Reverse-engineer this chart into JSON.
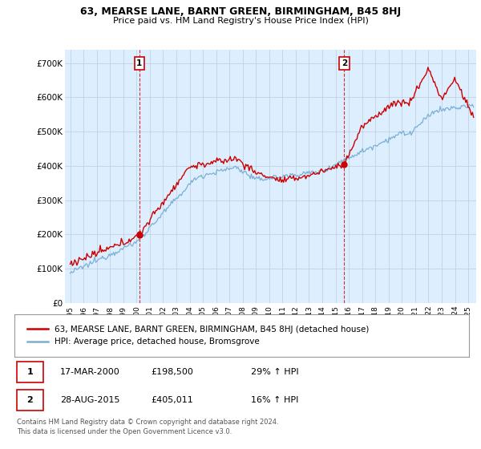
{
  "title": "63, MEARSE LANE, BARNT GREEN, BIRMINGHAM, B45 8HJ",
  "subtitle": "Price paid vs. HM Land Registry's House Price Index (HPI)",
  "ylabel_values": [
    "£0",
    "£100K",
    "£200K",
    "£300K",
    "£400K",
    "£500K",
    "£600K",
    "£700K"
  ],
  "ylim": [
    0,
    740000
  ],
  "xlim_start": 1994.6,
  "xlim_end": 2025.6,
  "red_color": "#cc0000",
  "blue_color": "#7ab0d4",
  "bg_plot_color": "#ddeeff",
  "marker1_x": 2000.21,
  "marker1_y": 198500,
  "marker2_x": 2015.65,
  "marker2_y": 405011,
  "legend_line1": "63, MEARSE LANE, BARNT GREEN, BIRMINGHAM, B45 8HJ (detached house)",
  "legend_line2": "HPI: Average price, detached house, Bromsgrove",
  "table_row1": [
    "1",
    "17-MAR-2000",
    "£198,500",
    "29% ↑ HPI"
  ],
  "table_row2": [
    "2",
    "28-AUG-2015",
    "£405,011",
    "16% ↑ HPI"
  ],
  "footnote": "Contains HM Land Registry data © Crown copyright and database right 2024.\nThis data is licensed under the Open Government Licence v3.0.",
  "background_color": "#ffffff",
  "grid_color": "#bbccdd"
}
